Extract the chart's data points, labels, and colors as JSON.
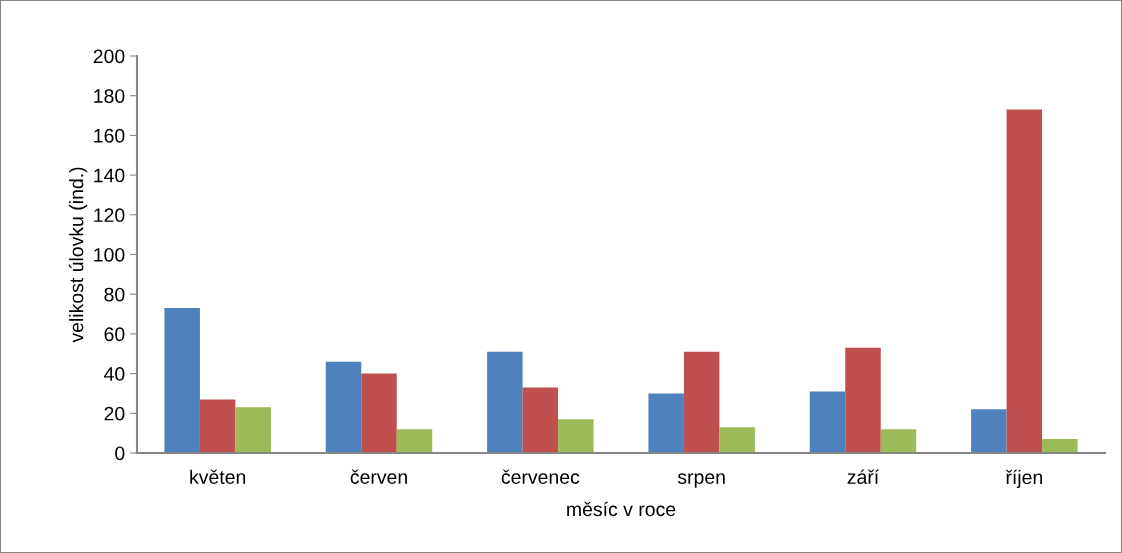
{
  "chart_data": {
    "type": "bar",
    "xlabel": "měsíc v roce",
    "ylabel": "velikost úlovku (ind.)",
    "categories": [
      "květen",
      "červen",
      "červenec",
      "srpen",
      "září",
      "říjen"
    ],
    "series": [
      {
        "color": "#4f81bd",
        "values": [
          73,
          46,
          51,
          30,
          31,
          22
        ]
      },
      {
        "color": "#c0504d",
        "values": [
          27,
          40,
          33,
          51,
          53,
          173
        ]
      },
      {
        "color": "#9bbb59",
        "values": [
          23,
          12,
          17,
          13,
          12,
          7
        ]
      }
    ],
    "ylim": [
      0,
      200
    ],
    "yticks": [
      0,
      20,
      40,
      60,
      80,
      100,
      120,
      140,
      160,
      180,
      200
    ],
    "grid": false,
    "legend": false
  }
}
